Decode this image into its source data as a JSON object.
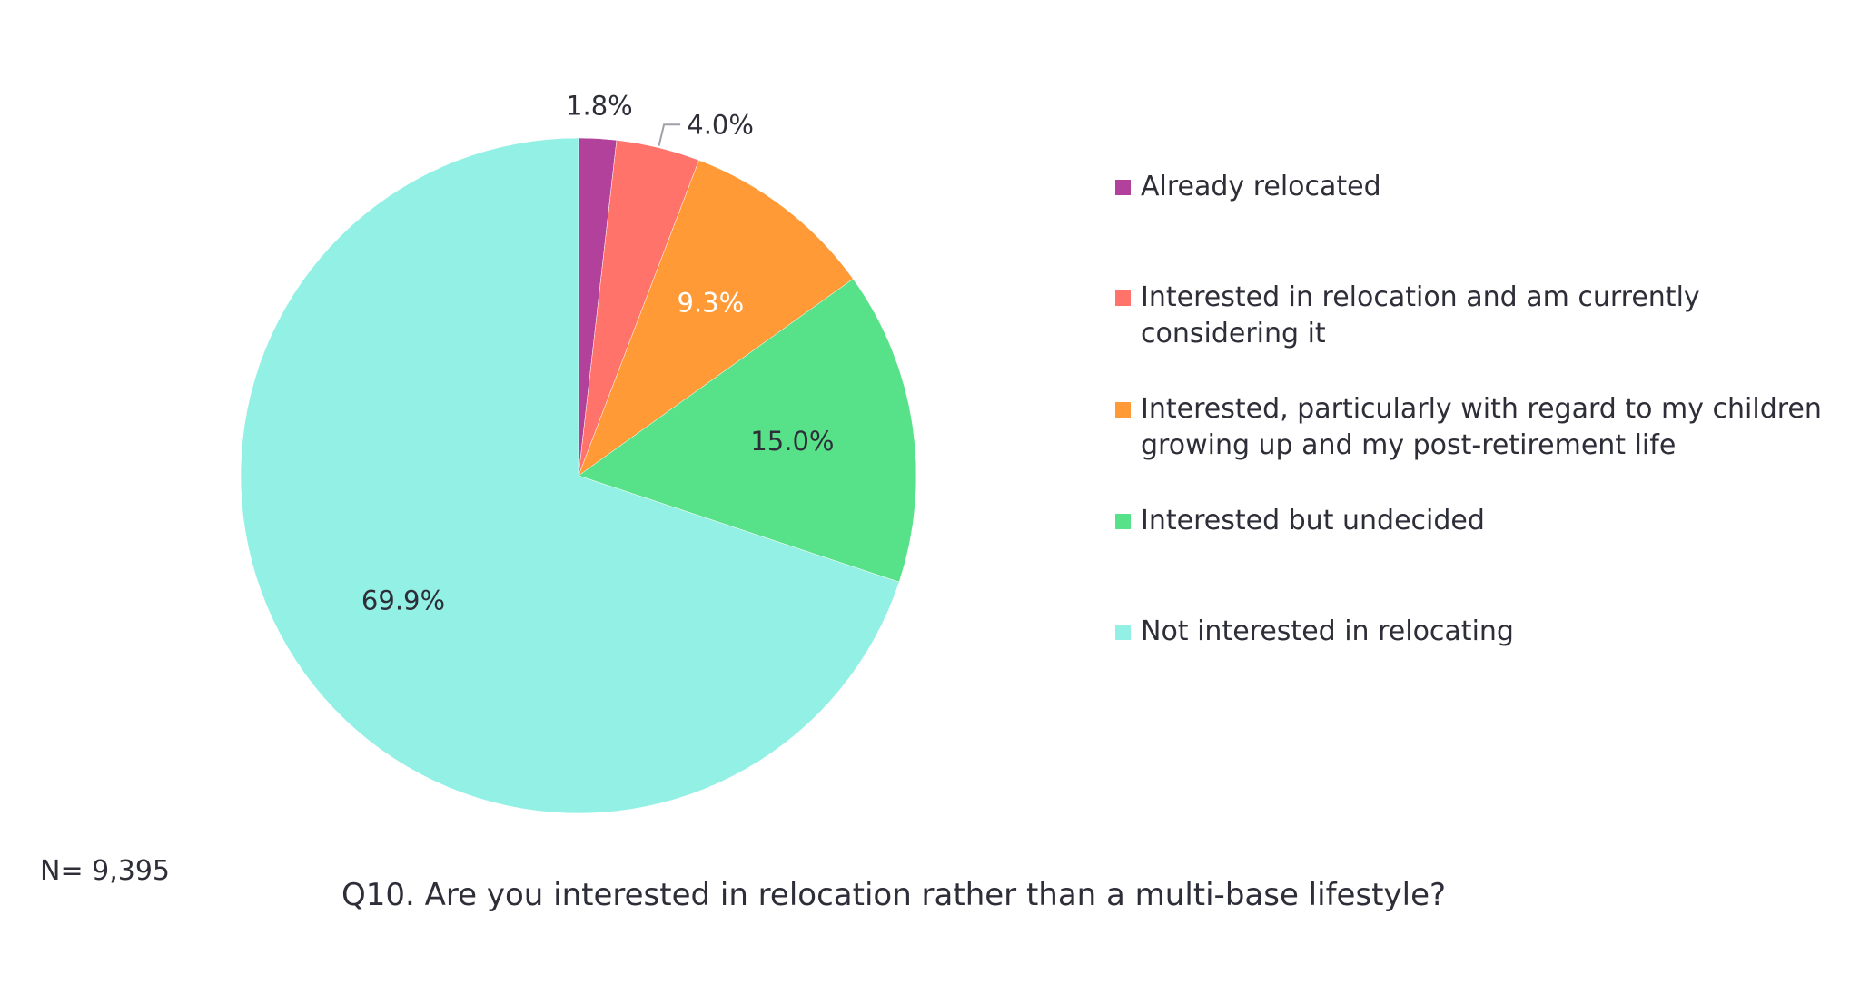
{
  "chart_data": {
    "type": "pie",
    "title": "",
    "question": "Q10. Are you interested in relocation rather than a multi-base lifestyle?",
    "sample_size": "N= 9,395",
    "start_angle": "12 o'clock",
    "direction": "clockwise",
    "legend_position": "right",
    "slices": [
      {
        "label": "Already relocated",
        "value": 1.8,
        "display": "1.8%",
        "color": "#b1419a",
        "label_color": "#2e2e38",
        "label_placement": "outside"
      },
      {
        "label": "Interested in relocation and am currently considering it",
        "value": 4.0,
        "display": "4.0%",
        "color": "#ff736a",
        "label_color": "#2e2e38",
        "label_placement": "outside-leader"
      },
      {
        "label": "Interested, particularly with regard to my children growing up and my post-retirement life",
        "value": 9.3,
        "display": "9.3%",
        "color": "#ff9a36",
        "label_color": "#ffffff",
        "label_placement": "inside"
      },
      {
        "label": "Interested but undecided",
        "value": 15.0,
        "display": "15.0%",
        "color": "#57e188",
        "label_color": "#2e2e38",
        "label_placement": "inside"
      },
      {
        "label": "Not interested in relocating",
        "value": 69.9,
        "display": "69.9%",
        "color": "#93f0e5",
        "label_color": "#2e2e38",
        "label_placement": "inside"
      }
    ]
  },
  "legend": {
    "items": [
      {
        "lines": [
          "Already relocated"
        ]
      },
      {
        "lines": [
          "Interested in relocation and am currently",
          "considering it"
        ]
      },
      {
        "lines": [
          "Interested, particularly with regard to my children",
          "growing up and my post-retirement life"
        ]
      },
      {
        "lines": [
          "Interested but undecided"
        ]
      },
      {
        "lines": [
          "Not interested in relocating"
        ]
      }
    ]
  }
}
